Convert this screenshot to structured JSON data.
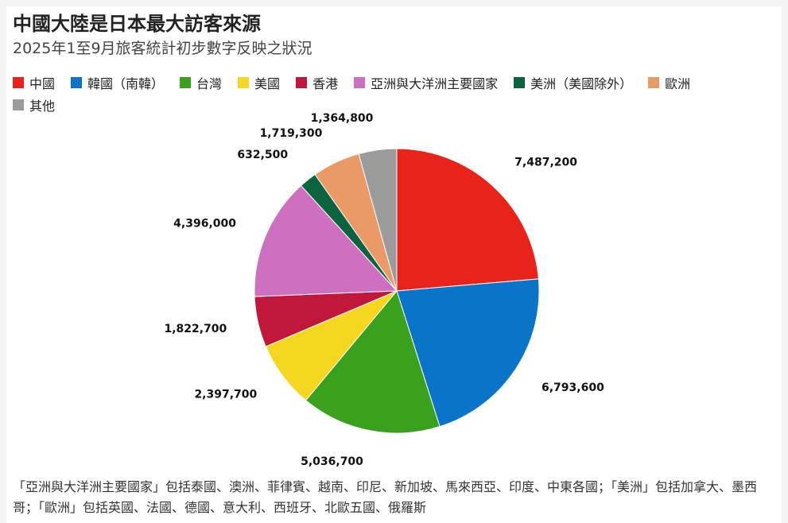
{
  "chart_data": {
    "type": "pie",
    "title": "中國大陸是日本最大訪客來源",
    "subtitle": "2025年1至9月旅客統計初步數字反映之狀況",
    "categories": [
      "中國",
      "韓國（南韓）",
      "台灣",
      "美國",
      "香港",
      "亞洲與大洋洲主要國家",
      "美洲（美國除外）",
      "歐洲",
      "其他"
    ],
    "values": [
      7487200,
      6793600,
      5036700,
      2397700,
      1822700,
      4396000,
      632500,
      1719300,
      1364800
    ],
    "value_labels": [
      "7,487,200",
      "6,793,600",
      "5,036,700",
      "2,397,700",
      "1,822,700",
      "4,396,000",
      "632,500",
      "1,719,300",
      "1,364,800"
    ],
    "colors": [
      "#e8231a",
      "#0a74c9",
      "#3aa11f",
      "#f5d720",
      "#c0173a",
      "#cf6fc0",
      "#0b6340",
      "#e99a66",
      "#9b9b9b"
    ],
    "note": "「亞洲與大洋洲主要國家」包括泰國、澳洲、菲律賓、越南、印尼、新加坡、馬來西亞、印度、中東各國；「美洲」包括加拿大、墨西哥；「歐洲」包括英國、法國、德國、意大利、西班牙、北歐五國、俄羅斯"
  }
}
